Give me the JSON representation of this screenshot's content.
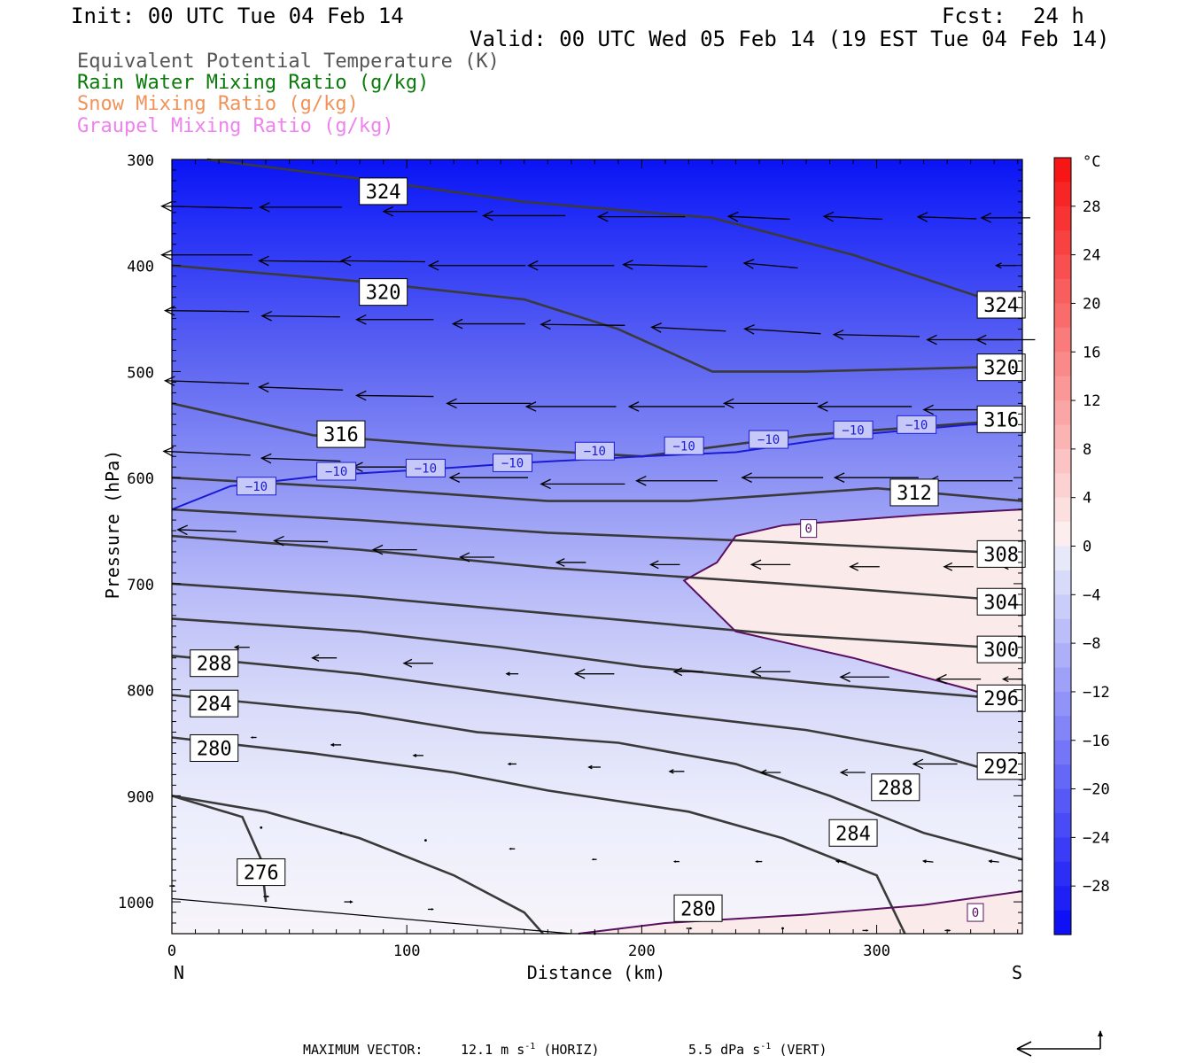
{
  "header": {
    "init": "Init: 00 UTC Tue 04 Feb 14",
    "fcst_label": "Fcst:",
    "fcst_value": "24 h",
    "valid": "Valid: 00 UTC Wed 05 Feb 14 (19 EST Tue 04 Feb 14)"
  },
  "fields": [
    {
      "label": "Equivalent Potential Temperature (K)",
      "color": "#555555"
    },
    {
      "label": "Rain Water Mixing Ratio (g/kg)",
      "color": "#0a7a0a"
    },
    {
      "label": "Snow Mixing Ratio (g/kg)",
      "color": "#f0935a"
    },
    {
      "label": "Graupel Mixing Ratio (g/kg)",
      "color": "#ee82ee"
    }
  ],
  "footer": {
    "max_vector_label": "MAXIMUM VECTOR:",
    "horiz": "12.1 m s",
    "horiz_exp": "-1",
    "horiz_suffix": "(HORIZ)",
    "vert": "5.5 dPa s",
    "vert_exp": "-1",
    "vert_suffix": "(VERT)"
  },
  "chart_data": {
    "type": "cross-section",
    "xlabel": "Distance (km)",
    "ylabel": "Pressure (hPa)",
    "xlim": [
      0,
      362
    ],
    "ylim": [
      1030,
      300
    ],
    "xticks": [
      0,
      100,
      200,
      300
    ],
    "yticks": [
      300,
      400,
      500,
      600,
      700,
      800,
      900,
      1000
    ],
    "x_end_labels": {
      "left": "N",
      "right": "S"
    },
    "temperature_colorbar": {
      "unit": "°C",
      "ticks": [
        28,
        24,
        20,
        16,
        12,
        8,
        4,
        0,
        -4,
        -8,
        -12,
        -16,
        -20,
        -24,
        -28
      ],
      "range": [
        -32,
        32
      ]
    },
    "theta_e_contours": [
      {
        "level": "324",
        "points": [
          [
            15,
            300
          ],
          [
            80,
            318
          ],
          [
            150,
            340
          ],
          [
            230,
            355
          ],
          [
            290,
            390
          ],
          [
            362,
            443
          ]
        ],
        "labels": [
          [
            90,
            330
          ],
          [
            353,
            437
          ]
        ]
      },
      {
        "level": "320",
        "points": [
          [
            0,
            400
          ],
          [
            80,
            415
          ],
          [
            150,
            432
          ],
          [
            190,
            460
          ],
          [
            230,
            500
          ],
          [
            270,
            500
          ],
          [
            362,
            495
          ]
        ],
        "labels": [
          [
            90,
            425
          ],
          [
            353,
            496
          ]
        ]
      },
      {
        "level": "316",
        "points": [
          [
            0,
            530
          ],
          [
            60,
            560
          ],
          [
            120,
            570
          ],
          [
            200,
            580
          ],
          [
            270,
            560
          ],
          [
            362,
            545
          ]
        ],
        "labels": [
          [
            72,
            559
          ],
          [
            353,
            545
          ]
        ]
      },
      {
        "level": "312",
        "points": [
          [
            0,
            600
          ],
          [
            80,
            610
          ],
          [
            160,
            622
          ],
          [
            220,
            622
          ],
          [
            300,
            610
          ],
          [
            362,
            622
          ]
        ],
        "labels": [
          [
            316,
            614
          ]
        ]
      },
      {
        "level": "308",
        "points": [
          [
            0,
            630
          ],
          [
            80,
            640
          ],
          [
            160,
            652
          ],
          [
            250,
            660
          ],
          [
            362,
            672
          ]
        ],
        "labels": [
          [
            353,
            672
          ]
        ]
      },
      {
        "level": "304",
        "points": [
          [
            0,
            655
          ],
          [
            80,
            668
          ],
          [
            160,
            685
          ],
          [
            260,
            700
          ],
          [
            362,
            717
          ]
        ],
        "labels": [
          [
            353,
            717
          ]
        ]
      },
      {
        "level": "300",
        "points": [
          [
            0,
            700
          ],
          [
            80,
            712
          ],
          [
            160,
            728
          ],
          [
            260,
            748
          ],
          [
            362,
            762
          ]
        ],
        "labels": [
          [
            353,
            762
          ]
        ]
      },
      {
        "level": "296",
        "points": [
          [
            0,
            733
          ],
          [
            80,
            745
          ],
          [
            140,
            760
          ],
          [
            200,
            778
          ],
          [
            280,
            795
          ],
          [
            362,
            810
          ]
        ],
        "labels": [
          [
            353,
            808
          ]
        ]
      },
      {
        "level": "292",
        "points": [
          [
            0,
            768
          ],
          [
            80,
            785
          ],
          [
            140,
            803
          ],
          [
            200,
            820
          ],
          [
            270,
            838
          ],
          [
            320,
            858
          ],
          [
            362,
            885
          ]
        ],
        "labels": [
          [
            353,
            872
          ]
        ]
      },
      {
        "level": "288",
        "points": [
          [
            0,
            805
          ],
          [
            80,
            822
          ],
          [
            130,
            840
          ],
          [
            190,
            850
          ],
          [
            240,
            870
          ],
          [
            280,
            900
          ],
          [
            320,
            935
          ],
          [
            362,
            960
          ]
        ],
        "labels": [
          [
            18,
            775
          ],
          [
            308,
            892
          ]
        ]
      },
      {
        "level": "284",
        "points": [
          [
            0,
            845
          ],
          [
            60,
            860
          ],
          [
            120,
            878
          ],
          [
            160,
            895
          ],
          [
            220,
            915
          ],
          [
            260,
            940
          ],
          [
            300,
            975
          ],
          [
            312,
            1030
          ]
        ],
        "labels": [
          [
            18,
            813
          ],
          [
            290,
            935
          ]
        ]
      },
      {
        "level": "280",
        "points": [
          [
            0,
            900
          ],
          [
            40,
            915
          ],
          [
            80,
            940
          ],
          [
            120,
            975
          ],
          [
            150,
            1010
          ],
          [
            158,
            1030
          ]
        ],
        "labels": [
          [
            18,
            855
          ],
          [
            224,
            1006
          ]
        ]
      },
      {
        "level": "276",
        "points": [
          [
            0,
            900
          ],
          [
            30,
            920
          ],
          [
            38,
            960
          ],
          [
            40,
            1000
          ]
        ],
        "labels": [
          [
            38,
            972
          ]
        ]
      }
    ],
    "temperature_contours": [
      {
        "level": "-10",
        "points": [
          [
            0,
            630
          ],
          [
            25,
            608
          ],
          [
            65,
            598
          ],
          [
            110,
            592
          ],
          [
            150,
            586
          ],
          [
            200,
            580
          ],
          [
            240,
            576
          ],
          [
            290,
            560
          ],
          [
            340,
            550
          ],
          [
            362,
            548
          ]
        ],
        "labels": [
          [
            36,
            608
          ],
          [
            70,
            594
          ],
          [
            108,
            591
          ],
          [
            145,
            586
          ],
          [
            180,
            575
          ],
          [
            218,
            570
          ],
          [
            254,
            564
          ],
          [
            290,
            555
          ],
          [
            317,
            550
          ]
        ]
      },
      {
        "level": "0",
        "points": [
          [
            362,
            630
          ],
          [
            320,
            635
          ],
          [
            260,
            645
          ],
          [
            240,
            655
          ],
          [
            232,
            680
          ],
          [
            218,
            697
          ],
          [
            240,
            745
          ],
          [
            290,
            770
          ],
          [
            340,
            800
          ],
          [
            362,
            815
          ]
        ],
        "labels": [
          [
            271,
            648
          ]
        ]
      },
      {
        "level": "0",
        "points": [
          [
            173,
            1030
          ],
          [
            210,
            1020
          ],
          [
            270,
            1012
          ],
          [
            320,
            1003
          ],
          [
            362,
            990
          ]
        ],
        "labels": [
          [
            342,
            1010
          ]
        ]
      }
    ],
    "wind_vectors": [
      {
        "x": 15,
        "p": 345,
        "u": -0.93,
        "w": 0.02
      },
      {
        "x": 55,
        "p": 345,
        "u": -0.84,
        "w": 0.0
      },
      {
        "x": 110,
        "p": 349,
        "u": -0.96,
        "w": 0.0
      },
      {
        "x": 150,
        "p": 353,
        "u": -0.84,
        "w": 0.0
      },
      {
        "x": 200,
        "p": 354,
        "u": -0.89,
        "w": 0.0
      },
      {
        "x": 250,
        "p": 355,
        "u": -0.63,
        "w": 0.03
      },
      {
        "x": 290,
        "p": 355,
        "u": -0.6,
        "w": 0.03
      },
      {
        "x": 330,
        "p": 355,
        "u": -0.6,
        "w": 0.02
      },
      {
        "x": 355,
        "p": 355,
        "u": -0.5,
        "w": 0.0
      },
      {
        "x": 15,
        "p": 390,
        "u": -0.93,
        "w": 0.0
      },
      {
        "x": 55,
        "p": 396,
        "u": -0.86,
        "w": 0.01
      },
      {
        "x": 90,
        "p": 396,
        "u": -0.86,
        "w": 0.01
      },
      {
        "x": 130,
        "p": 400,
        "u": -0.99,
        "w": 0.0
      },
      {
        "x": 170,
        "p": 400,
        "u": -0.88,
        "w": 0.0
      },
      {
        "x": 210,
        "p": 400,
        "u": -0.86,
        "w": 0.02
      },
      {
        "x": 255,
        "p": 400,
        "u": -0.55,
        "w": 0.05
      },
      {
        "x": 355,
        "p": 400,
        "u": -0.2,
        "w": 0.0
      },
      {
        "x": 15,
        "p": 443,
        "u": -0.86,
        "w": 0.01
      },
      {
        "x": 55,
        "p": 448,
        "u": -0.8,
        "w": 0.01
      },
      {
        "x": 95,
        "p": 451,
        "u": -0.79,
        "w": 0.0
      },
      {
        "x": 135,
        "p": 455,
        "u": -0.74,
        "w": 0.0
      },
      {
        "x": 175,
        "p": 456,
        "u": -0.86,
        "w": 0.01
      },
      {
        "x": 220,
        "p": 460,
        "u": -0.76,
        "w": 0.04
      },
      {
        "x": 260,
        "p": 462,
        "u": -0.78,
        "w": 0.05
      },
      {
        "x": 300,
        "p": 466,
        "u": -0.88,
        "w": 0.02
      },
      {
        "x": 340,
        "p": 470,
        "u": -0.89,
        "w": 0.0
      },
      {
        "x": 355,
        "p": 470,
        "u": -0.6,
        "w": 0.0
      },
      {
        "x": 15,
        "p": 510,
        "u": -0.86,
        "w": 0.03
      },
      {
        "x": 55,
        "p": 516,
        "u": -0.86,
        "w": 0.03
      },
      {
        "x": 95,
        "p": 523,
        "u": -0.79,
        "w": 0.01
      },
      {
        "x": 135,
        "p": 530,
        "u": -0.86,
        "w": 0.0
      },
      {
        "x": 170,
        "p": 533,
        "u": -0.92,
        "w": 0.0
      },
      {
        "x": 215,
        "p": 533,
        "u": -0.98,
        "w": 0.0
      },
      {
        "x": 255,
        "p": 530,
        "u": -0.96,
        "w": 0.0
      },
      {
        "x": 295,
        "p": 533,
        "u": -0.96,
        "w": 0.0
      },
      {
        "x": 340,
        "p": 536,
        "u": -0.96,
        "w": 0.0
      },
      {
        "x": 15,
        "p": 577,
        "u": -0.89,
        "w": 0.04
      },
      {
        "x": 55,
        "p": 583,
        "u": -0.81,
        "w": 0.03
      },
      {
        "x": 95,
        "p": 590,
        "u": -0.86,
        "w": 0.0
      },
      {
        "x": 135,
        "p": 600,
        "u": -0.8,
        "w": 0.0
      },
      {
        "x": 175,
        "p": 606,
        "u": -0.86,
        "w": 0.0
      },
      {
        "x": 215,
        "p": 603,
        "u": -0.83,
        "w": 0.0
      },
      {
        "x": 260,
        "p": 600,
        "u": -0.83,
        "w": 0.0
      },
      {
        "x": 300,
        "p": 600,
        "u": -0.86,
        "w": 0.0
      },
      {
        "x": 340,
        "p": 603,
        "u": -0.86,
        "w": 0.0
      },
      {
        "x": 15,
        "p": 650,
        "u": -0.6,
        "w": 0.02
      },
      {
        "x": 55,
        "p": 660,
        "u": -0.55,
        "w": 0.01
      },
      {
        "x": 95,
        "p": 668,
        "u": -0.45,
        "w": 0.0
      },
      {
        "x": 130,
        "p": 675,
        "u": -0.35,
        "w": 0.0
      },
      {
        "x": 170,
        "p": 680,
        "u": -0.3,
        "w": 0.0
      },
      {
        "x": 210,
        "p": 682,
        "u": -0.3,
        "w": 0.0
      },
      {
        "x": 255,
        "p": 682,
        "u": -0.4,
        "w": 0.0
      },
      {
        "x": 295,
        "p": 684,
        "u": -0.3,
        "w": 0.0
      },
      {
        "x": 335,
        "p": 684,
        "u": -0.3,
        "w": 0.0
      },
      {
        "x": 358,
        "p": 684,
        "u": -0.2,
        "w": 0.0
      },
      {
        "x": 30,
        "p": 760,
        "u": -0.15,
        "w": 0.0
      },
      {
        "x": 65,
        "p": 770,
        "u": -0.25,
        "w": 0.0
      },
      {
        "x": 105,
        "p": 775,
        "u": -0.3,
        "w": 0.0
      },
      {
        "x": 145,
        "p": 785,
        "u": -0.12,
        "w": 0.0
      },
      {
        "x": 180,
        "p": 785,
        "u": -0.4,
        "w": 0.0
      },
      {
        "x": 220,
        "p": 783,
        "u": -0.3,
        "w": 0.0
      },
      {
        "x": 255,
        "p": 783,
        "u": -0.4,
        "w": 0.0
      },
      {
        "x": 295,
        "p": 788,
        "u": -0.5,
        "w": 0.0
      },
      {
        "x": 335,
        "p": 790,
        "u": -0.45,
        "w": 0.0
      },
      {
        "x": 358,
        "p": 790,
        "u": -0.2,
        "w": 0.0
      },
      {
        "x": 35,
        "p": 845,
        "u": -0.05,
        "w": 0.0
      },
      {
        "x": 70,
        "p": 852,
        "u": -0.1,
        "w": 0.0
      },
      {
        "x": 105,
        "p": 862,
        "u": -0.1,
        "w": 0.0
      },
      {
        "x": 145,
        "p": 870,
        "u": -0.08,
        "w": 0.0
      },
      {
        "x": 180,
        "p": 873,
        "u": -0.12,
        "w": 0.0
      },
      {
        "x": 215,
        "p": 877,
        "u": -0.15,
        "w": 0.0
      },
      {
        "x": 255,
        "p": 878,
        "u": -0.2,
        "w": 0.0
      },
      {
        "x": 290,
        "p": 878,
        "u": -0.25,
        "w": 0.0
      },
      {
        "x": 325,
        "p": 870,
        "u": -0.45,
        "w": 0.0
      },
      {
        "x": 358,
        "p": 870,
        "u": -0.15,
        "w": 0.0
      },
      {
        "x": 38,
        "p": 930,
        "u": -0.02,
        "w": 0.0
      },
      {
        "x": 72,
        "p": 935,
        "u": -0.02,
        "w": 0.0
      },
      {
        "x": 108,
        "p": 942,
        "u": -0.03,
        "w": 0.0
      },
      {
        "x": 145,
        "p": 950,
        "u": -0.05,
        "w": 0.0
      },
      {
        "x": 180,
        "p": 960,
        "u": -0.04,
        "w": 0.0
      },
      {
        "x": 215,
        "p": 962,
        "u": -0.05,
        "w": 0.0
      },
      {
        "x": 250,
        "p": 962,
        "u": -0.06,
        "w": 0.0
      },
      {
        "x": 285,
        "p": 962,
        "u": -0.1,
        "w": 0.01
      },
      {
        "x": 322,
        "p": 962,
        "u": -0.1,
        "w": 0.01
      },
      {
        "x": 350,
        "p": 962,
        "u": -0.1,
        "w": 0.01
      },
      {
        "x": 0,
        "p": 985,
        "u": 0.05,
        "w": 0.0
      },
      {
        "x": 40,
        "p": 995,
        "u": 0.05,
        "w": 0.0
      },
      {
        "x": 75,
        "p": 1000,
        "u": 0.08,
        "w": 0.0
      },
      {
        "x": 110,
        "p": 1007,
        "u": 0.05,
        "w": 0.0
      },
      {
        "x": 180,
        "p": 1030,
        "u": 0.03,
        "w": 0.0
      },
      {
        "x": 220,
        "p": 1025,
        "u": 0.05,
        "w": 0.0
      },
      {
        "x": 260,
        "p": 1025,
        "u": 0.03,
        "w": 0.0
      },
      {
        "x": 295,
        "p": 1027,
        "u": 0.05,
        "w": 0.0
      },
      {
        "x": 330,
        "p": 1027,
        "u": 0.05,
        "w": 0.0
      }
    ],
    "reference_vector": {
      "horiz_m_s": 12.1,
      "vert_dPa_s": 5.5
    }
  }
}
